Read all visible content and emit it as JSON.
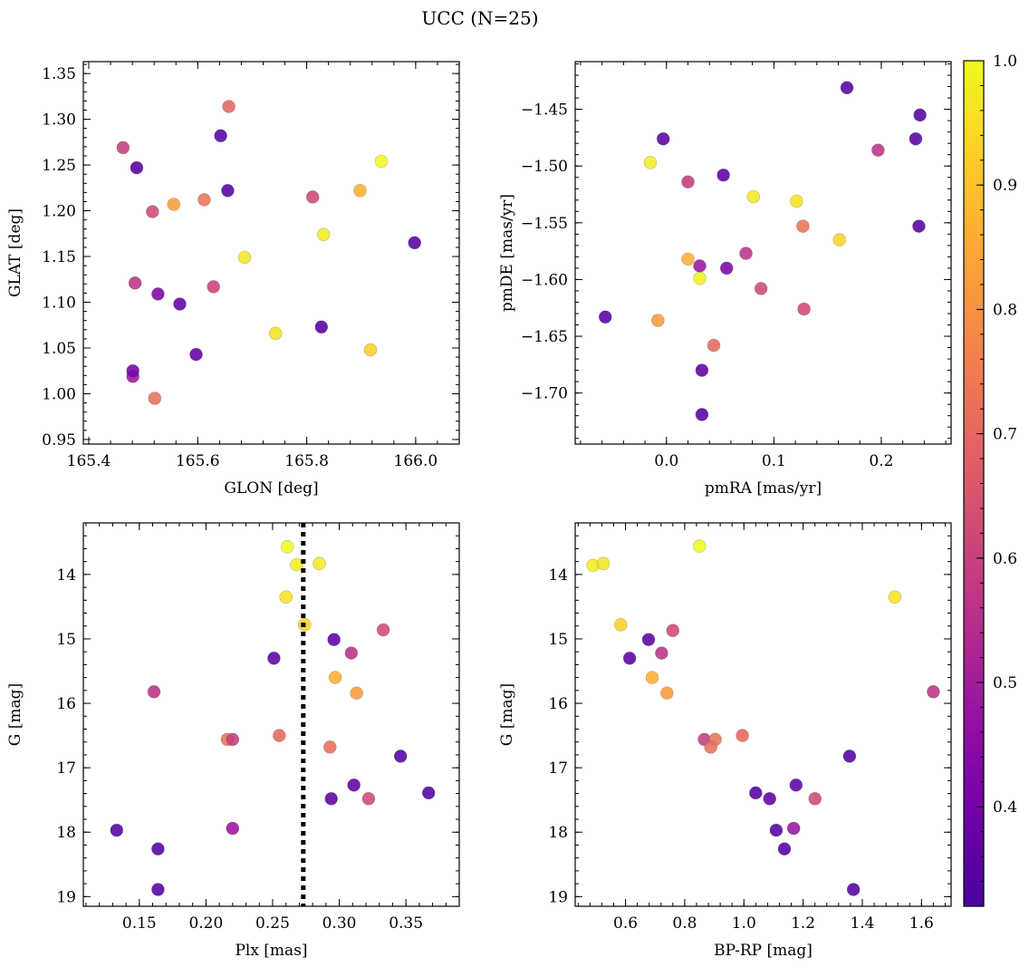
{
  "figure": {
    "title": "UCC (N=25)"
  },
  "colorbar": {
    "min": 0.32,
    "max": 1.0,
    "ticks": [
      0.4,
      0.5,
      0.6,
      0.7,
      0.8,
      0.9,
      1.0
    ],
    "tick_labels": [
      "0.4",
      "0.5",
      "0.6",
      "0.7",
      "0.8",
      "0.9",
      "1.0"
    ],
    "colormap": "plasma"
  },
  "chart_data": [
    {
      "type": "scatter",
      "title": "",
      "xlabel": "GLON [deg]",
      "ylabel": "GLAT [deg]",
      "xlim": [
        165.39,
        166.08
      ],
      "ylim": [
        0.945,
        1.363
      ],
      "xticks": [
        165.4,
        165.6,
        165.8,
        166.0
      ],
      "xtick_labels": [
        "165.4",
        "165.6",
        "165.8",
        "166.0"
      ],
      "yticks": [
        0.95,
        1.0,
        1.05,
        1.1,
        1.15,
        1.2,
        1.25,
        1.3,
        1.35
      ],
      "ytick_labels": [
        "0.95",
        "1.00",
        "1.05",
        "1.10",
        "1.15",
        "1.20",
        "1.25",
        "1.30",
        "1.35"
      ],
      "points": [
        {
          "x": 165.937,
          "y": 1.254,
          "c": 1.0
        },
        {
          "x": 165.831,
          "y": 1.174,
          "c": 0.98
        },
        {
          "x": 165.686,
          "y": 1.149,
          "c": 0.97
        },
        {
          "x": 165.743,
          "y": 1.066,
          "c": 0.96
        },
        {
          "x": 165.917,
          "y": 1.048,
          "c": 0.93
        },
        {
          "x": 165.898,
          "y": 1.222,
          "c": 0.86
        },
        {
          "x": 165.556,
          "y": 1.207,
          "c": 0.82
        },
        {
          "x": 165.612,
          "y": 1.212,
          "c": 0.73
        },
        {
          "x": 165.521,
          "y": 0.995,
          "c": 0.72
        },
        {
          "x": 165.657,
          "y": 1.314,
          "c": 0.7
        },
        {
          "x": 165.811,
          "y": 1.215,
          "c": 0.62
        },
        {
          "x": 165.517,
          "y": 1.199,
          "c": 0.62
        },
        {
          "x": 165.629,
          "y": 1.117,
          "c": 0.6
        },
        {
          "x": 165.463,
          "y": 1.269,
          "c": 0.59
        },
        {
          "x": 165.485,
          "y": 1.121,
          "c": 0.56
        },
        {
          "x": 165.481,
          "y": 1.019,
          "c": 0.48
        },
        {
          "x": 165.527,
          "y": 1.109,
          "c": 0.42
        },
        {
          "x": 165.481,
          "y": 1.025,
          "c": 0.4
        },
        {
          "x": 165.567,
          "y": 1.098,
          "c": 0.36
        },
        {
          "x": 165.597,
          "y": 1.043,
          "c": 0.36
        },
        {
          "x": 165.655,
          "y": 1.222,
          "c": 0.34
        },
        {
          "x": 165.642,
          "y": 1.282,
          "c": 0.34
        },
        {
          "x": 165.488,
          "y": 1.247,
          "c": 0.34
        },
        {
          "x": 165.827,
          "y": 1.073,
          "c": 0.34
        },
        {
          "x": 165.998,
          "y": 1.165,
          "c": 0.34
        }
      ]
    },
    {
      "type": "scatter",
      "title": "",
      "xlabel": "pmRA [mas/yr]",
      "ylabel": "pmDE [mas/yr]",
      "xlim": [
        -0.085,
        0.265
      ],
      "ylim": [
        -1.745,
        -1.408
      ],
      "xticks": [
        0.0,
        0.1,
        0.2
      ],
      "xtick_labels": [
        "0.0",
        "0.1",
        "0.2"
      ],
      "yticks": [
        -1.7,
        -1.65,
        -1.6,
        -1.55,
        -1.5,
        -1.45
      ],
      "ytick_labels": [
        "−1.70",
        "−1.65",
        "−1.60",
        "−1.55",
        "−1.50",
        "−1.45"
      ],
      "points": [
        {
          "x": 0.168,
          "y": -1.431,
          "c": 0.34
        },
        {
          "x": 0.236,
          "y": -1.455,
          "c": 0.34
        },
        {
          "x": 0.232,
          "y": -1.476,
          "c": 0.34
        },
        {
          "x": -0.003,
          "y": -1.476,
          "c": 0.36
        },
        {
          "x": 0.197,
          "y": -1.486,
          "c": 0.56
        },
        {
          "x": -0.015,
          "y": -1.497,
          "c": 0.98
        },
        {
          "x": 0.053,
          "y": -1.508,
          "c": 0.36
        },
        {
          "x": 0.02,
          "y": -1.514,
          "c": 0.59
        },
        {
          "x": 0.081,
          "y": -1.527,
          "c": 0.97
        },
        {
          "x": 0.121,
          "y": -1.531,
          "c": 0.96
        },
        {
          "x": 0.127,
          "y": -1.553,
          "c": 0.73
        },
        {
          "x": 0.235,
          "y": -1.553,
          "c": 0.34
        },
        {
          "x": 0.161,
          "y": -1.565,
          "c": 0.93
        },
        {
          "x": 0.074,
          "y": -1.577,
          "c": 0.56
        },
        {
          "x": 0.02,
          "y": -1.582,
          "c": 0.86
        },
        {
          "x": 0.031,
          "y": -1.588,
          "c": 0.48
        },
        {
          "x": 0.056,
          "y": -1.59,
          "c": 0.42
        },
        {
          "x": 0.031,
          "y": -1.599,
          "c": 0.99
        },
        {
          "x": 0.088,
          "y": -1.608,
          "c": 0.62
        },
        {
          "x": 0.128,
          "y": -1.626,
          "c": 0.62
        },
        {
          "x": -0.057,
          "y": -1.633,
          "c": 0.34
        },
        {
          "x": -0.008,
          "y": -1.636,
          "c": 0.82
        },
        {
          "x": 0.044,
          "y": -1.658,
          "c": 0.7
        },
        {
          "x": 0.033,
          "y": -1.68,
          "c": 0.36
        },
        {
          "x": 0.033,
          "y": -1.719,
          "c": 0.34
        }
      ]
    },
    {
      "type": "scatter",
      "title": "",
      "xlabel": "Plx [mas]",
      "ylabel": "G [mag]",
      "xlim": [
        0.108,
        0.39
      ],
      "ylim": [
        19.15,
        13.2
      ],
      "xticks": [
        0.15,
        0.2,
        0.25,
        0.3,
        0.35
      ],
      "xtick_labels": [
        "0.15",
        "0.20",
        "0.25",
        "0.30",
        "0.35"
      ],
      "yticks": [
        14,
        15,
        16,
        17,
        18,
        19
      ],
      "ytick_labels": [
        "14",
        "15",
        "16",
        "17",
        "18",
        "19"
      ],
      "vline": 0.273,
      "points": [
        {
          "x": 0.261,
          "y": 13.57,
          "c": 1.0
        },
        {
          "x": 0.268,
          "y": 13.85,
          "c": 0.98
        },
        {
          "x": 0.285,
          "y": 13.83,
          "c": 0.97
        },
        {
          "x": 0.26,
          "y": 14.35,
          "c": 0.96
        },
        {
          "x": 0.274,
          "y": 14.78,
          "c": 0.93
        },
        {
          "x": 0.333,
          "y": 14.86,
          "c": 0.62
        },
        {
          "x": 0.296,
          "y": 15.01,
          "c": 0.36
        },
        {
          "x": 0.309,
          "y": 15.22,
          "c": 0.56
        },
        {
          "x": 0.251,
          "y": 15.3,
          "c": 0.36
        },
        {
          "x": 0.297,
          "y": 15.6,
          "c": 0.86
        },
        {
          "x": 0.313,
          "y": 15.84,
          "c": 0.82
        },
        {
          "x": 0.161,
          "y": 15.82,
          "c": 0.56
        },
        {
          "x": 0.255,
          "y": 16.5,
          "c": 0.7
        },
        {
          "x": 0.216,
          "y": 16.56,
          "c": 0.73
        },
        {
          "x": 0.22,
          "y": 16.56,
          "c": 0.59
        },
        {
          "x": 0.293,
          "y": 16.68,
          "c": 0.72
        },
        {
          "x": 0.346,
          "y": 16.82,
          "c": 0.34
        },
        {
          "x": 0.311,
          "y": 17.27,
          "c": 0.36
        },
        {
          "x": 0.367,
          "y": 17.39,
          "c": 0.34
        },
        {
          "x": 0.294,
          "y": 17.48,
          "c": 0.36
        },
        {
          "x": 0.322,
          "y": 17.48,
          "c": 0.62
        },
        {
          "x": 0.22,
          "y": 17.94,
          "c": 0.48
        },
        {
          "x": 0.133,
          "y": 17.97,
          "c": 0.34
        },
        {
          "x": 0.164,
          "y": 18.26,
          "c": 0.34
        },
        {
          "x": 0.164,
          "y": 18.89,
          "c": 0.34
        }
      ]
    },
    {
      "type": "scatter",
      "title": "",
      "xlabel": "BP-RP [mag]",
      "ylabel": "G [mag]",
      "xlim": [
        0.43,
        1.7
      ],
      "ylim": [
        19.15,
        13.2
      ],
      "xticks": [
        0.6,
        0.8,
        1.0,
        1.2,
        1.4,
        1.6
      ],
      "xtick_labels": [
        "0.6",
        "0.8",
        "1.0",
        "1.2",
        "1.4",
        "1.6"
      ],
      "yticks": [
        14,
        15,
        16,
        17,
        18,
        19
      ],
      "ytick_labels": [
        "14",
        "15",
        "16",
        "17",
        "18",
        "19"
      ],
      "points": [
        {
          "x": 0.49,
          "y": 13.86,
          "c": 0.98
        },
        {
          "x": 0.525,
          "y": 13.83,
          "c": 0.97
        },
        {
          "x": 0.85,
          "y": 13.56,
          "c": 1.0
        },
        {
          "x": 0.584,
          "y": 14.78,
          "c": 0.93
        },
        {
          "x": 1.51,
          "y": 14.35,
          "c": 0.96
        },
        {
          "x": 0.678,
          "y": 15.01,
          "c": 0.36
        },
        {
          "x": 0.76,
          "y": 14.87,
          "c": 0.62
        },
        {
          "x": 0.722,
          "y": 15.22,
          "c": 0.56
        },
        {
          "x": 0.614,
          "y": 15.3,
          "c": 0.36
        },
        {
          "x": 0.69,
          "y": 15.6,
          "c": 0.86
        },
        {
          "x": 0.74,
          "y": 15.84,
          "c": 0.82
        },
        {
          "x": 1.64,
          "y": 15.82,
          "c": 0.56
        },
        {
          "x": 0.866,
          "y": 16.56,
          "c": 0.59
        },
        {
          "x": 0.903,
          "y": 16.56,
          "c": 0.73
        },
        {
          "x": 0.888,
          "y": 16.68,
          "c": 0.72
        },
        {
          "x": 0.995,
          "y": 16.5,
          "c": 0.7
        },
        {
          "x": 1.357,
          "y": 16.82,
          "c": 0.34
        },
        {
          "x": 1.04,
          "y": 17.39,
          "c": 0.34
        },
        {
          "x": 1.087,
          "y": 17.48,
          "c": 0.36
        },
        {
          "x": 1.176,
          "y": 17.27,
          "c": 0.36
        },
        {
          "x": 1.24,
          "y": 17.48,
          "c": 0.62
        },
        {
          "x": 1.109,
          "y": 17.97,
          "c": 0.34
        },
        {
          "x": 1.168,
          "y": 17.94,
          "c": 0.48
        },
        {
          "x": 1.137,
          "y": 18.26,
          "c": 0.34
        },
        {
          "x": 1.37,
          "y": 18.89,
          "c": 0.34
        }
      ]
    }
  ]
}
